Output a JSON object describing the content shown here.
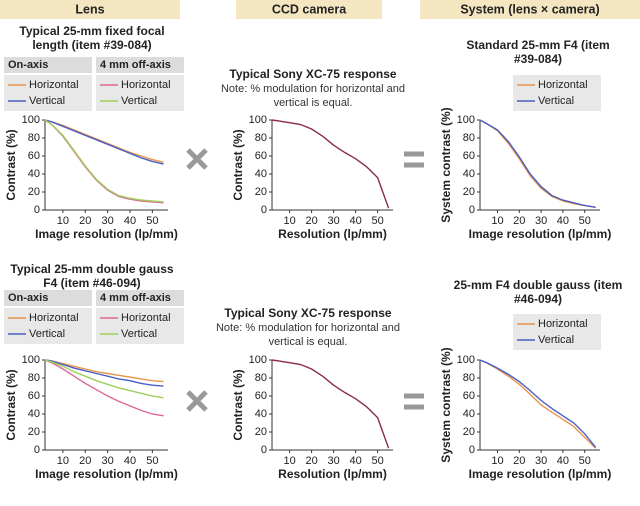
{
  "headers": [
    "Lens",
    "CCD camera",
    "System (lens × camera)"
  ],
  "chart_data": [
    {
      "type": "line",
      "title": "Typical 25-mm fixed focal length (item #39-084)",
      "xlabel": "Image resolution (lp/mm)",
      "ylabel": "Contrast (%)",
      "x": [
        2,
        5,
        10,
        15,
        20,
        25,
        30,
        35,
        40,
        45,
        50,
        55
      ],
      "xlim": [
        2,
        57
      ],
      "xticks": [
        10,
        20,
        30,
        40,
        50
      ],
      "ylim": [
        0,
        100
      ],
      "yticks": [
        0,
        20,
        40,
        60,
        80,
        100
      ],
      "series": [
        {
          "name": "Horizontal",
          "group": "On-axis",
          "color": "#e8954a",
          "values": [
            100,
            98,
            94,
            89,
            84,
            79,
            74,
            69,
            64,
            60,
            56,
            53
          ]
        },
        {
          "name": "Vertical",
          "group": "On-axis",
          "color": "#4a5fc4",
          "values": [
            100,
            98,
            93,
            88,
            83,
            78,
            73,
            68,
            63,
            58,
            54,
            51
          ]
        },
        {
          "name": "Horizontal",
          "group": "4 mm off-axis",
          "color": "#e0659a",
          "values": [
            100,
            95,
            82,
            65,
            48,
            33,
            22,
            15,
            12,
            10,
            9,
            8
          ]
        },
        {
          "name": "Vertical",
          "group": "4 mm off-axis",
          "color": "#9fcf5a",
          "values": [
            100,
            95,
            83,
            66,
            49,
            34,
            23,
            16,
            13,
            11,
            10,
            9
          ]
        }
      ]
    },
    {
      "type": "line",
      "title": "Typical Sony XC-75 response",
      "subtitle": "Note: % modulation for horizontal and vertical is equal.",
      "xlabel": "Resolution (lp/mm)",
      "ylabel": "Contrast (%)",
      "x": [
        2,
        5,
        10,
        15,
        20,
        25,
        30,
        35,
        40,
        45,
        50,
        55
      ],
      "xlim": [
        2,
        57
      ],
      "xticks": [
        10,
        20,
        30,
        40,
        50
      ],
      "ylim": [
        0,
        100
      ],
      "yticks": [
        0,
        20,
        40,
        60,
        80,
        100
      ],
      "series": [
        {
          "color": "#8b2a4a",
          "values": [
            100,
            99,
            97,
            95,
            90,
            82,
            72,
            64,
            57,
            48,
            36,
            2
          ]
        }
      ]
    },
    {
      "type": "line",
      "title": "Standard 25-mm F4 (item #39-084)",
      "xlabel": "Image resolution (lp/mm)",
      "ylabel": "System contrast (%)",
      "x": [
        2,
        5,
        10,
        15,
        20,
        25,
        30,
        35,
        40,
        45,
        50,
        55
      ],
      "xlim": [
        2,
        57
      ],
      "xticks": [
        10,
        20,
        30,
        40,
        50
      ],
      "ylim": [
        0,
        100
      ],
      "yticks": [
        0,
        20,
        40,
        60,
        80,
        100
      ],
      "series": [
        {
          "name": "Horizontal",
          "color": "#e8954a",
          "values": [
            100,
            96,
            88,
            74,
            57,
            38,
            24,
            15,
            10,
            7,
            5,
            3
          ]
        },
        {
          "name": "Vertical",
          "color": "#4a5fc4",
          "values": [
            100,
            96,
            89,
            76,
            59,
            40,
            26,
            16,
            11,
            8,
            5,
            3
          ]
        }
      ]
    },
    {
      "type": "line",
      "title": "Typical 25-mm double gauss F4 (item #46-094)",
      "xlabel": "Image resolution (lp/mm)",
      "ylabel": "Contrast (%)",
      "x": [
        2,
        5,
        10,
        15,
        20,
        25,
        30,
        35,
        40,
        45,
        50,
        55
      ],
      "xlim": [
        2,
        57
      ],
      "xticks": [
        10,
        20,
        30,
        40,
        50
      ],
      "ylim": [
        0,
        100
      ],
      "yticks": [
        0,
        20,
        40,
        60,
        80,
        100
      ],
      "series": [
        {
          "name": "Horizontal",
          "group": "On-axis",
          "color": "#e8954a",
          "values": [
            100,
            99,
            96,
            93,
            90,
            87,
            85,
            83,
            81,
            79,
            77,
            76
          ]
        },
        {
          "name": "Vertical",
          "group": "On-axis",
          "color": "#4a5fc4",
          "values": [
            100,
            99,
            95,
            91,
            88,
            85,
            82,
            79,
            77,
            74,
            72,
            71
          ]
        },
        {
          "name": "Horizontal",
          "group": "4 mm off-axis",
          "color": "#e0659a",
          "values": [
            100,
            97,
            90,
            82,
            74,
            67,
            60,
            54,
            49,
            44,
            40,
            38
          ]
        },
        {
          "name": "Vertical",
          "group": "4 mm off-axis",
          "color": "#9fcf5a",
          "values": [
            100,
            98,
            93,
            87,
            82,
            77,
            73,
            69,
            66,
            63,
            60,
            58
          ]
        }
      ]
    },
    {
      "type": "line",
      "title": "Typical Sony XC-75 response",
      "subtitle": "Note: % modulation for horizontal and vertical is equal.",
      "xlabel": "Resolution (lp/mm)",
      "ylabel": "Contrast (%)",
      "x": [
        2,
        5,
        10,
        15,
        20,
        25,
        30,
        35,
        40,
        45,
        50,
        55
      ],
      "xlim": [
        2,
        57
      ],
      "xticks": [
        10,
        20,
        30,
        40,
        50
      ],
      "ylim": [
        0,
        100
      ],
      "yticks": [
        0,
        20,
        40,
        60,
        80,
        100
      ],
      "series": [
        {
          "color": "#8b2a4a",
          "values": [
            100,
            99,
            97,
            95,
            90,
            82,
            72,
            64,
            57,
            48,
            36,
            2
          ]
        }
      ]
    },
    {
      "type": "line",
      "title": "25-mm F4 double gauss (item #46-094)",
      "xlabel": "Image resolution (lp/mm)",
      "ylabel": "System contrast (%)",
      "x": [
        2,
        5,
        10,
        15,
        20,
        25,
        30,
        35,
        40,
        45,
        50,
        55
      ],
      "xlim": [
        2,
        57
      ],
      "xticks": [
        10,
        20,
        30,
        40,
        50
      ],
      "ylim": [
        0,
        100
      ],
      "yticks": [
        0,
        20,
        40,
        60,
        80,
        100
      ],
      "series": [
        {
          "name": "Horizontal",
          "color": "#e8954a",
          "values": [
            100,
            97,
            90,
            82,
            73,
            62,
            50,
            42,
            34,
            26,
            14,
            2
          ]
        },
        {
          "name": "Vertical",
          "color": "#4a5fc4",
          "values": [
            100,
            97,
            91,
            84,
            76,
            66,
            55,
            46,
            38,
            30,
            18,
            3
          ]
        }
      ]
    }
  ]
}
